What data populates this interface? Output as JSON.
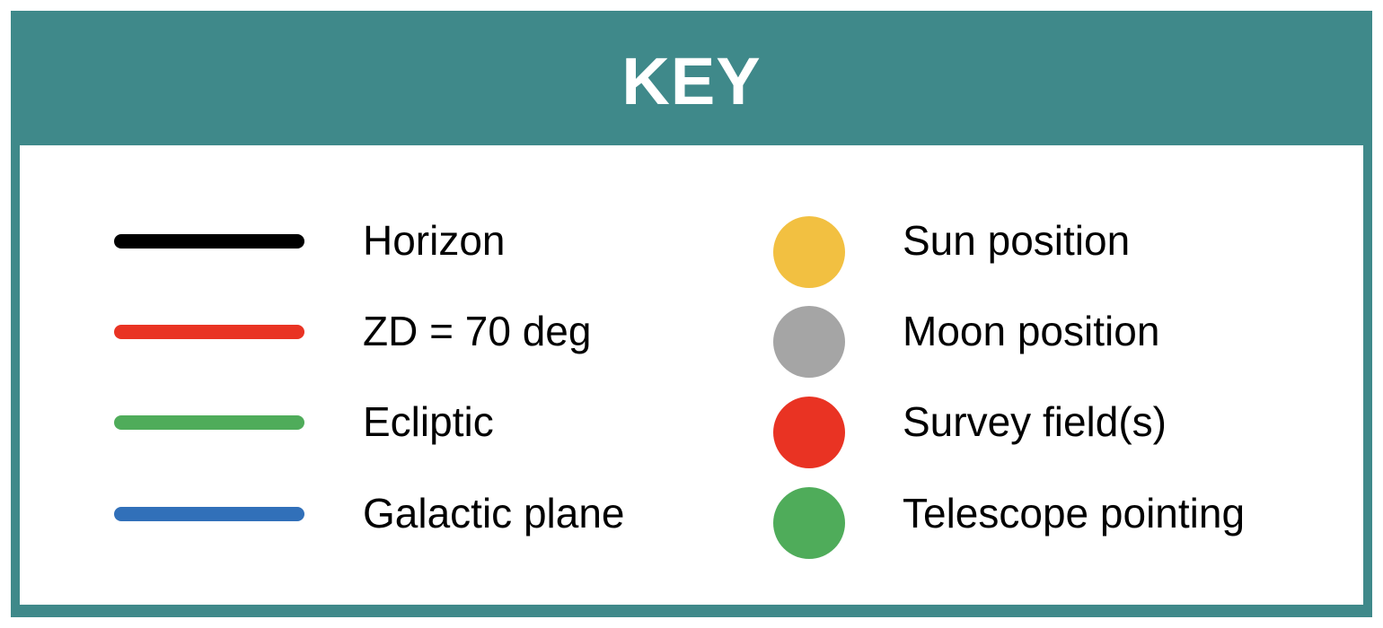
{
  "key": {
    "title": "KEY",
    "header_color": "#3f898a",
    "lines": [
      {
        "label": "Horizon",
        "color": "#000000"
      },
      {
        "label": "ZD = 70 deg",
        "color": "#e93323"
      },
      {
        "label": "Ecliptic",
        "color": "#4fac5a"
      },
      {
        "label": "Galactic plane",
        "color": "#3170b9"
      }
    ],
    "markers": [
      {
        "label": "Sun position",
        "color": "#f2c041"
      },
      {
        "label": "Moon position",
        "color": "#a5a5a5"
      },
      {
        "label": "Survey field(s)",
        "color": "#e93323"
      },
      {
        "label": "Telescope pointing",
        "color": "#4fac5a"
      }
    ]
  }
}
